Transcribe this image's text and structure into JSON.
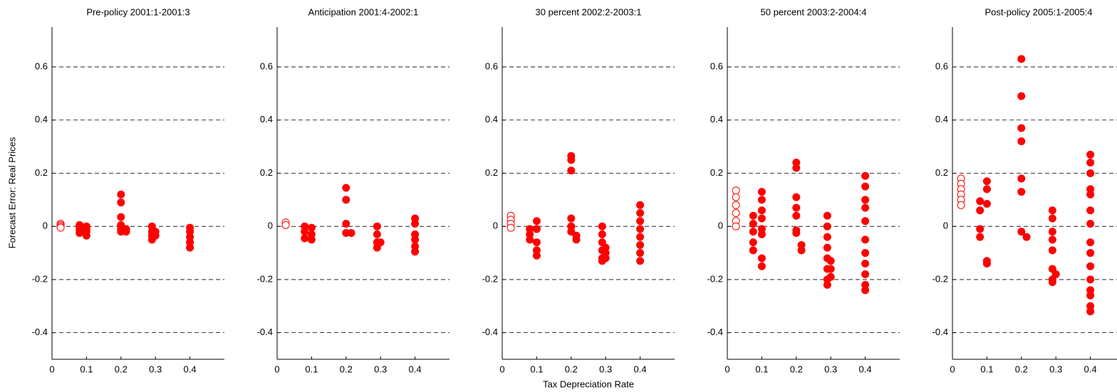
{
  "chart_data": [
    {
      "type": "scatter",
      "title": "Pre-policy 2001:1-2001:3",
      "y_label": "Forecast Error: Real Prices",
      "xlim": [
        0,
        0.5
      ],
      "ylim": [
        -0.5,
        0.75
      ],
      "xticks": [
        0,
        0.1,
        0.2,
        0.3,
        0.4
      ],
      "yticks": [
        -0.4,
        -0.2,
        0,
        0.2,
        0.4,
        0.6
      ],
      "grid": true,
      "series": [
        {
          "color": "#ff0000",
          "marker": "open",
          "x": [
            0.025,
            0.025,
            0.025,
            0.025
          ],
          "values": [
            0.01,
            0.005,
            0,
            -0.005
          ]
        },
        {
          "color": "#ff0000",
          "marker": "filled",
          "x": [
            0.08,
            0.08,
            0.08,
            0.08,
            0.1,
            0.1,
            0.1,
            0.1,
            0.2,
            0.2,
            0.2,
            0.2,
            0.2,
            0.2,
            0.215,
            0.215,
            0.29,
            0.29,
            0.29,
            0.29,
            0.3,
            0.3,
            0.4,
            0.4,
            0.4,
            0.4,
            0.4
          ],
          "values": [
            0.005,
            -0.005,
            -0.015,
            -0.025,
            0,
            -0.01,
            -0.02,
            -0.035,
            0.12,
            0.09,
            0.035,
            0.005,
            -0.01,
            -0.02,
            -0.01,
            -0.02,
            0,
            -0.02,
            -0.035,
            -0.05,
            -0.02,
            -0.035,
            -0.005,
            -0.02,
            -0.04,
            -0.06,
            -0.08
          ]
        }
      ]
    },
    {
      "type": "scatter",
      "title": "Anticipation 2001:4-2002:1",
      "xlim": [
        0,
        0.5
      ],
      "ylim": [
        -0.5,
        0.75
      ],
      "xticks": [
        0,
        0.1,
        0.2,
        0.3,
        0.4
      ],
      "yticks": [
        -0.4,
        -0.2,
        0,
        0.2,
        0.4,
        0.6
      ],
      "grid": true,
      "series": [
        {
          "color": "#ff0000",
          "marker": "open",
          "x": [
            0.025,
            0.025
          ],
          "values": [
            0.015,
            0.005
          ]
        },
        {
          "color": "#ff0000",
          "marker": "filled",
          "x": [
            0.08,
            0.08,
            0.08,
            0.1,
            0.1,
            0.1,
            0.2,
            0.2,
            0.2,
            0.2,
            0.215,
            0.29,
            0.29,
            0.29,
            0.29,
            0.3,
            0.4,
            0.4,
            0.4,
            0.4,
            0.4,
            0.4
          ],
          "values": [
            0,
            -0.02,
            -0.045,
            -0.005,
            -0.03,
            -0.05,
            0.145,
            0.1,
            0.01,
            -0.025,
            -0.025,
            0,
            -0.03,
            -0.06,
            -0.08,
            -0.06,
            0.03,
            0.01,
            -0.03,
            -0.05,
            -0.075,
            -0.095
          ]
        }
      ]
    },
    {
      "type": "scatter",
      "title": "30 percent 2002:2-2003:1",
      "x_label": "Tax Depreciation Rate",
      "xlim": [
        0,
        0.5
      ],
      "ylim": [
        -0.5,
        0.75
      ],
      "xticks": [
        0,
        0.1,
        0.2,
        0.3,
        0.4
      ],
      "yticks": [
        -0.4,
        -0.2,
        0,
        0.2,
        0.4,
        0.6
      ],
      "grid": true,
      "series": [
        {
          "color": "#ff0000",
          "marker": "open",
          "x": [
            0.025,
            0.025,
            0.025,
            0.025
          ],
          "values": [
            0.04,
            0.025,
            0.01,
            -0.005
          ]
        },
        {
          "color": "#ff0000",
          "marker": "filled",
          "x": [
            0.08,
            0.08,
            0.08,
            0.1,
            0.1,
            0.1,
            0.1,
            0.1,
            0.2,
            0.2,
            0.2,
            0.2,
            0.2,
            0.2,
            0.215,
            0.215,
            0.29,
            0.29,
            0.29,
            0.29,
            0.29,
            0.29,
            0.3,
            0.3,
            0.3,
            0.4,
            0.4,
            0.4,
            0.4,
            0.4,
            0.4,
            0.4,
            0.4
          ],
          "values": [
            -0.01,
            -0.03,
            -0.05,
            0.02,
            -0.01,
            -0.06,
            -0.09,
            -0.11,
            0.265,
            0.25,
            0.21,
            0.03,
            0,
            -0.02,
            -0.035,
            -0.05,
            0,
            -0.03,
            -0.06,
            -0.09,
            -0.12,
            -0.13,
            -0.08,
            -0.1,
            -0.12,
            0.08,
            0.05,
            0.02,
            -0.01,
            -0.04,
            -0.07,
            -0.1,
            -0.13
          ]
        }
      ]
    },
    {
      "type": "scatter",
      "title": "50 percent 2003:2-2004:4",
      "xlim": [
        0,
        0.5
      ],
      "ylim": [
        -0.5,
        0.75
      ],
      "xticks": [
        0,
        0.1,
        0.2,
        0.3,
        0.4
      ],
      "yticks": [
        -0.4,
        -0.2,
        0,
        0.2,
        0.4,
        0.6
      ],
      "grid": true,
      "series": [
        {
          "color": "#ff0000",
          "marker": "open",
          "x": [
            0.025,
            0.025,
            0.025,
            0.025,
            0.025,
            0.025
          ],
          "values": [
            0.135,
            0.11,
            0.08,
            0.05,
            0.02,
            0
          ]
        },
        {
          "color": "#ff0000",
          "marker": "filled",
          "x": [
            0.075,
            0.075,
            0.075,
            0.075,
            0.075,
            0.1,
            0.1,
            0.1,
            0.1,
            0.1,
            0.1,
            0.1,
            0.1,
            0.2,
            0.2,
            0.2,
            0.2,
            0.2,
            0.2,
            0.2,
            0.215,
            0.215,
            0.29,
            0.29,
            0.29,
            0.29,
            0.29,
            0.29,
            0.29,
            0.29,
            0.3,
            0.3,
            0.3,
            0.4,
            0.4,
            0.4,
            0.4,
            0.4,
            0.4,
            0.4,
            0.4,
            0.4,
            0.4,
            0.4
          ],
          "values": [
            0.04,
            0.01,
            -0.02,
            -0.06,
            -0.09,
            0.13,
            0.1,
            0.06,
            0.03,
            -0.01,
            -0.03,
            -0.12,
            -0.15,
            0.24,
            0.22,
            0.11,
            0.07,
            0.04,
            -0.015,
            -0.025,
            -0.07,
            -0.09,
            0.04,
            0,
            -0.04,
            -0.08,
            -0.12,
            -0.16,
            -0.2,
            -0.22,
            -0.13,
            -0.16,
            -0.19,
            0.19,
            0.15,
            0.1,
            0.07,
            0.02,
            -0.05,
            -0.1,
            -0.14,
            -0.18,
            -0.22,
            -0.24
          ]
        }
      ]
    },
    {
      "type": "scatter",
      "title": "Post-policy 2005:1-2005:4",
      "xlim": [
        0,
        0.5
      ],
      "ylim": [
        -0.5,
        0.75
      ],
      "xticks": [
        0,
        0.1,
        0.2,
        0.3,
        0.4
      ],
      "yticks": [
        -0.4,
        -0.2,
        0,
        0.2,
        0.4,
        0.6
      ],
      "grid": true,
      "series": [
        {
          "color": "#ff0000",
          "marker": "open",
          "x": [
            0.025,
            0.025,
            0.025,
            0.025,
            0.025,
            0.025
          ],
          "values": [
            0.18,
            0.16,
            0.14,
            0.12,
            0.1,
            0.08
          ]
        },
        {
          "color": "#ff0000",
          "marker": "filled",
          "x": [
            0.08,
            0.08,
            0.08,
            0.08,
            0.1,
            0.1,
            0.1,
            0.1,
            0.1,
            0.2,
            0.2,
            0.2,
            0.2,
            0.2,
            0.2,
            0.2,
            0.215,
            0.29,
            0.29,
            0.29,
            0.29,
            0.29,
            0.29,
            0.29,
            0.29,
            0.3,
            0.4,
            0.4,
            0.4,
            0.4,
            0.4,
            0.4,
            0.4,
            0.4,
            0.4,
            0.4,
            0.4,
            0.4,
            0.4,
            0.4,
            0.4
          ],
          "values": [
            0.095,
            0.06,
            -0.01,
            -0.04,
            0.17,
            0.14,
            0.085,
            -0.13,
            -0.14,
            0.63,
            0.49,
            0.37,
            0.32,
            0.18,
            0.13,
            -0.02,
            -0.04,
            0.06,
            0.03,
            -0.02,
            -0.05,
            -0.09,
            -0.16,
            -0.2,
            -0.21,
            -0.18,
            0.27,
            0.24,
            0.2,
            0.14,
            0.12,
            0.06,
            0.01,
            -0.06,
            -0.1,
            -0.15,
            -0.2,
            -0.24,
            -0.26,
            -0.3,
            -0.32
          ]
        }
      ]
    }
  ]
}
